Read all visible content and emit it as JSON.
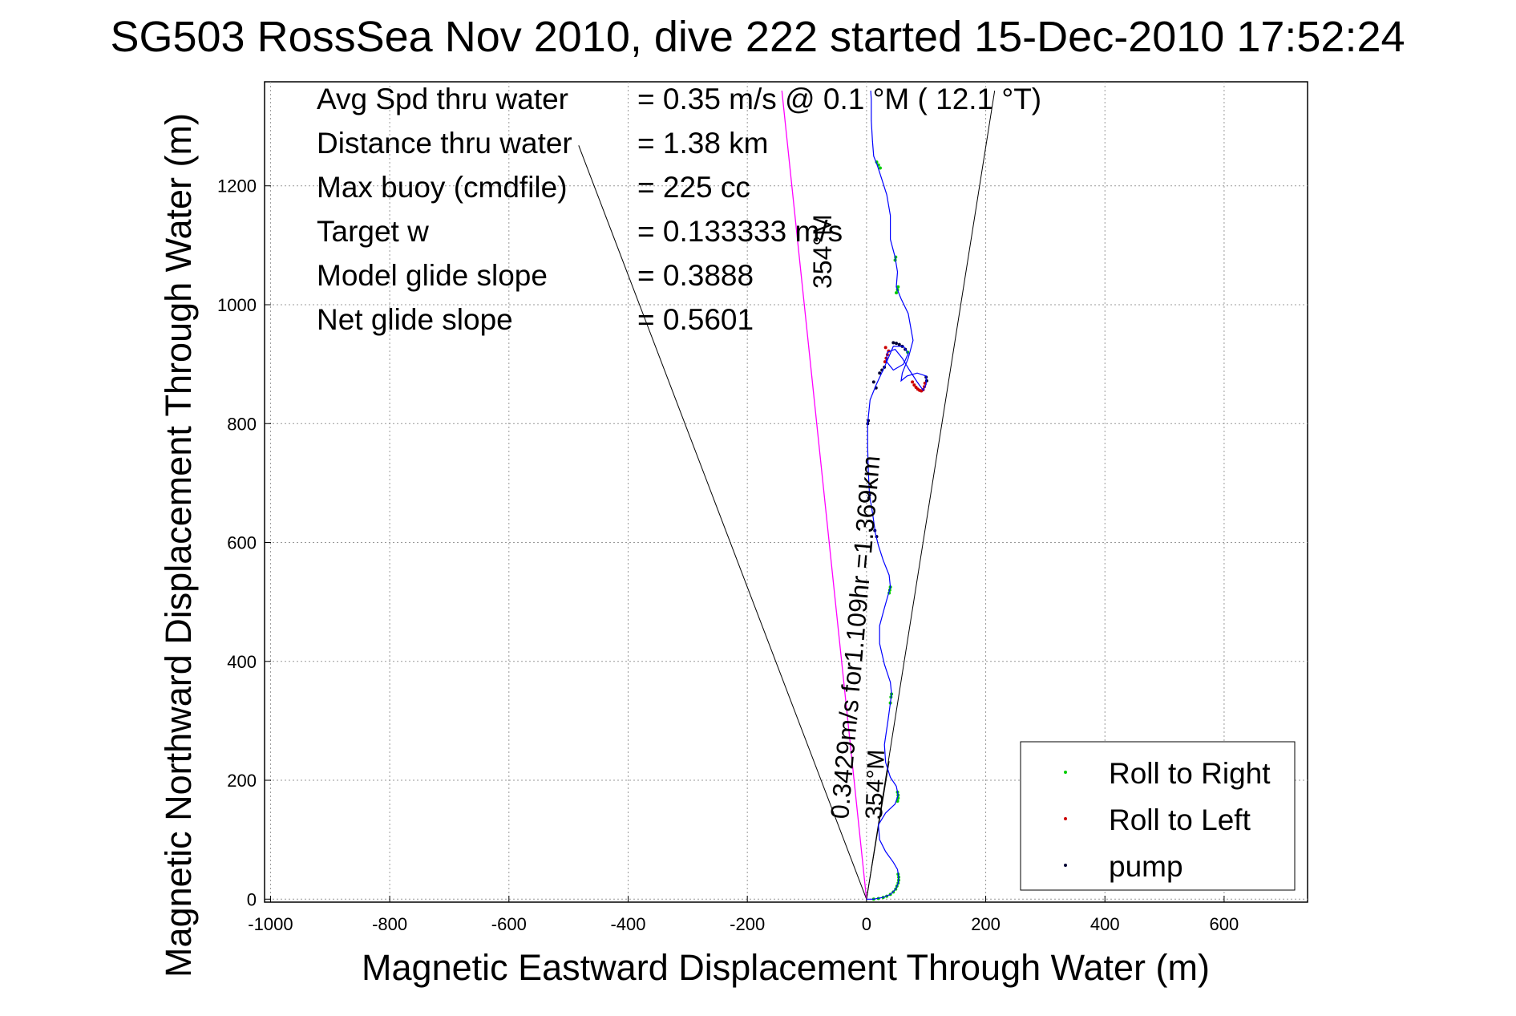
{
  "chart_data": {
    "type": "scatter",
    "title": "SG503 RossSea Nov 2010, dive 222 started 15-Dec-2010 17:52:24",
    "xlabel": "Magnetic Eastward Displacement Through Water (m)",
    "ylabel": "Magnetic Northward Displacement Through Water (m)",
    "xlim": [
      -1010,
      740
    ],
    "ylim": [
      -5,
      1375
    ],
    "xticks": [
      -1000,
      -800,
      -600,
      -400,
      -200,
      0,
      200,
      400,
      600
    ],
    "yticks": [
      0,
      200,
      400,
      600,
      800,
      1000,
      1200
    ],
    "grid": true,
    "legend_position": "bottom-right",
    "stats": [
      {
        "label": "Avg Spd thru water",
        "value": "=  0.35 m/s @    0.1 °M ( 12.1 °T)"
      },
      {
        "label": "Distance thru water",
        "value": "=  1.38 km"
      },
      {
        "label": "Max buoy (cmdfile)",
        "value": "= 225 cc"
      },
      {
        "label": "Target w",
        "value": "= 0.133333 m/s"
      },
      {
        "label": "Model glide slope",
        "value": "= 0.3888"
      },
      {
        "label": "Net glide slope",
        "value": "= 0.5601"
      }
    ],
    "annotations": {
      "rate_label": "0.3429m/s for1.109hr =1.369km",
      "heading_label_upper": "354°M",
      "heading_label_lower": "354°M"
    },
    "reference_lines": {
      "wedge_left_end": [
        -483,
        1268
      ],
      "wedge_right_end": [
        215,
        1360
      ],
      "heading_line_end": [
        -142,
        1360
      ],
      "arrow_end": [
        38,
        232
      ]
    },
    "colors": {
      "track": "#0000ff",
      "roll_right": "#00cc00",
      "roll_left": "#cc0000",
      "pump": "#000033",
      "heading_line": "#ff00ff",
      "wedge": "#000000",
      "grid": "#999999"
    },
    "series": [
      {
        "name": "Roll to Right",
        "marker": "dot",
        "color": "#00cc00",
        "points": [
          [
            12,
            0
          ],
          [
            20,
            1
          ],
          [
            28,
            3
          ],
          [
            34,
            5
          ],
          [
            40,
            8
          ],
          [
            45,
            12
          ],
          [
            49,
            17
          ],
          [
            51,
            22
          ],
          [
            53,
            27
          ],
          [
            54,
            32
          ],
          [
            54,
            37
          ],
          [
            53,
            42
          ],
          [
            52,
            165
          ],
          [
            53,
            170
          ],
          [
            53,
            175
          ],
          [
            52,
            180
          ],
          [
            40,
            330
          ],
          [
            41,
            340
          ],
          [
            42,
            345
          ],
          [
            38,
            515
          ],
          [
            39,
            520
          ],
          [
            40,
            525
          ],
          [
            50,
            1020
          ],
          [
            52,
            1025
          ],
          [
            53,
            1030
          ],
          [
            48,
            1075
          ],
          [
            49,
            1080
          ],
          [
            17,
            1240
          ],
          [
            20,
            1235
          ],
          [
            23,
            1230
          ],
          [
            69,
            920
          ]
        ]
      },
      {
        "name": "Roll to Left",
        "marker": "dot",
        "color": "#cc0000",
        "points": [
          [
            37,
            922
          ],
          [
            35,
            916
          ],
          [
            33,
            910
          ],
          [
            31,
            904
          ],
          [
            32,
            928
          ],
          [
            77,
            870
          ],
          [
            80,
            865
          ],
          [
            83,
            861
          ],
          [
            86,
            858
          ],
          [
            89,
            856
          ],
          [
            92,
            855
          ],
          [
            95,
            857
          ],
          [
            97,
            862
          ],
          [
            98,
            868
          ]
        ]
      },
      {
        "name": "pump",
        "marker": "dot",
        "color": "#000033",
        "points": [
          [
            2,
            800
          ],
          [
            3,
            805
          ],
          [
            4,
            675
          ],
          [
            5,
            680
          ],
          [
            14,
            620
          ],
          [
            17,
            610
          ],
          [
            16,
            860
          ],
          [
            12,
            870
          ],
          [
            22,
            885
          ],
          [
            26,
            890
          ],
          [
            30,
            895
          ],
          [
            60,
            930
          ],
          [
            55,
            933
          ],
          [
            50,
            935
          ],
          [
            45,
            936
          ],
          [
            65,
            925
          ],
          [
            100,
            878
          ],
          [
            101,
            872
          ]
        ]
      },
      {
        "name": "track",
        "line": true,
        "color": "#0000ff",
        "points": [
          [
            0,
            0
          ],
          [
            12,
            0
          ],
          [
            28,
            3
          ],
          [
            40,
            8
          ],
          [
            49,
            17
          ],
          [
            53,
            27
          ],
          [
            54,
            37
          ],
          [
            52,
            50
          ],
          [
            45,
            62
          ],
          [
            32,
            80
          ],
          [
            22,
            100
          ],
          [
            20,
            125
          ],
          [
            32,
            145
          ],
          [
            48,
            160
          ],
          [
            53,
            175
          ],
          [
            50,
            190
          ],
          [
            40,
            205
          ],
          [
            32,
            230
          ],
          [
            30,
            260
          ],
          [
            36,
            300
          ],
          [
            40,
            330
          ],
          [
            42,
            345
          ],
          [
            40,
            365
          ],
          [
            30,
            395
          ],
          [
            22,
            430
          ],
          [
            22,
            460
          ],
          [
            30,
            490
          ],
          [
            40,
            525
          ],
          [
            38,
            545
          ],
          [
            28,
            570
          ],
          [
            20,
            595
          ],
          [
            15,
            615
          ],
          [
            10,
            650
          ],
          [
            5,
            680
          ],
          [
            3,
            720
          ],
          [
            2,
            760
          ],
          [
            2,
            800
          ],
          [
            6,
            840
          ],
          [
            16,
            865
          ],
          [
            30,
            895
          ],
          [
            45,
            930
          ],
          [
            62,
            930
          ],
          [
            70,
            918
          ],
          [
            62,
            900
          ],
          [
            45,
            890
          ],
          [
            33,
            905
          ],
          [
            35,
            920
          ],
          [
            48,
            925
          ],
          [
            60,
            910
          ],
          [
            72,
            890
          ],
          [
            85,
            870
          ],
          [
            95,
            856
          ],
          [
            100,
            866
          ],
          [
            100,
            880
          ],
          [
            85,
            885
          ],
          [
            68,
            880
          ],
          [
            58,
            872
          ],
          [
            60,
            885
          ],
          [
            70,
            910
          ],
          [
            78,
            940
          ],
          [
            70,
            985
          ],
          [
            58,
            1010
          ],
          [
            50,
            1030
          ],
          [
            52,
            1055
          ],
          [
            48,
            1080
          ],
          [
            40,
            1110
          ],
          [
            40,
            1150
          ],
          [
            34,
            1185
          ],
          [
            26,
            1210
          ],
          [
            18,
            1235
          ],
          [
            12,
            1250
          ],
          [
            10,
            1275
          ],
          [
            8,
            1310
          ],
          [
            8,
            1345
          ],
          [
            7,
            1360
          ]
        ]
      }
    ]
  }
}
